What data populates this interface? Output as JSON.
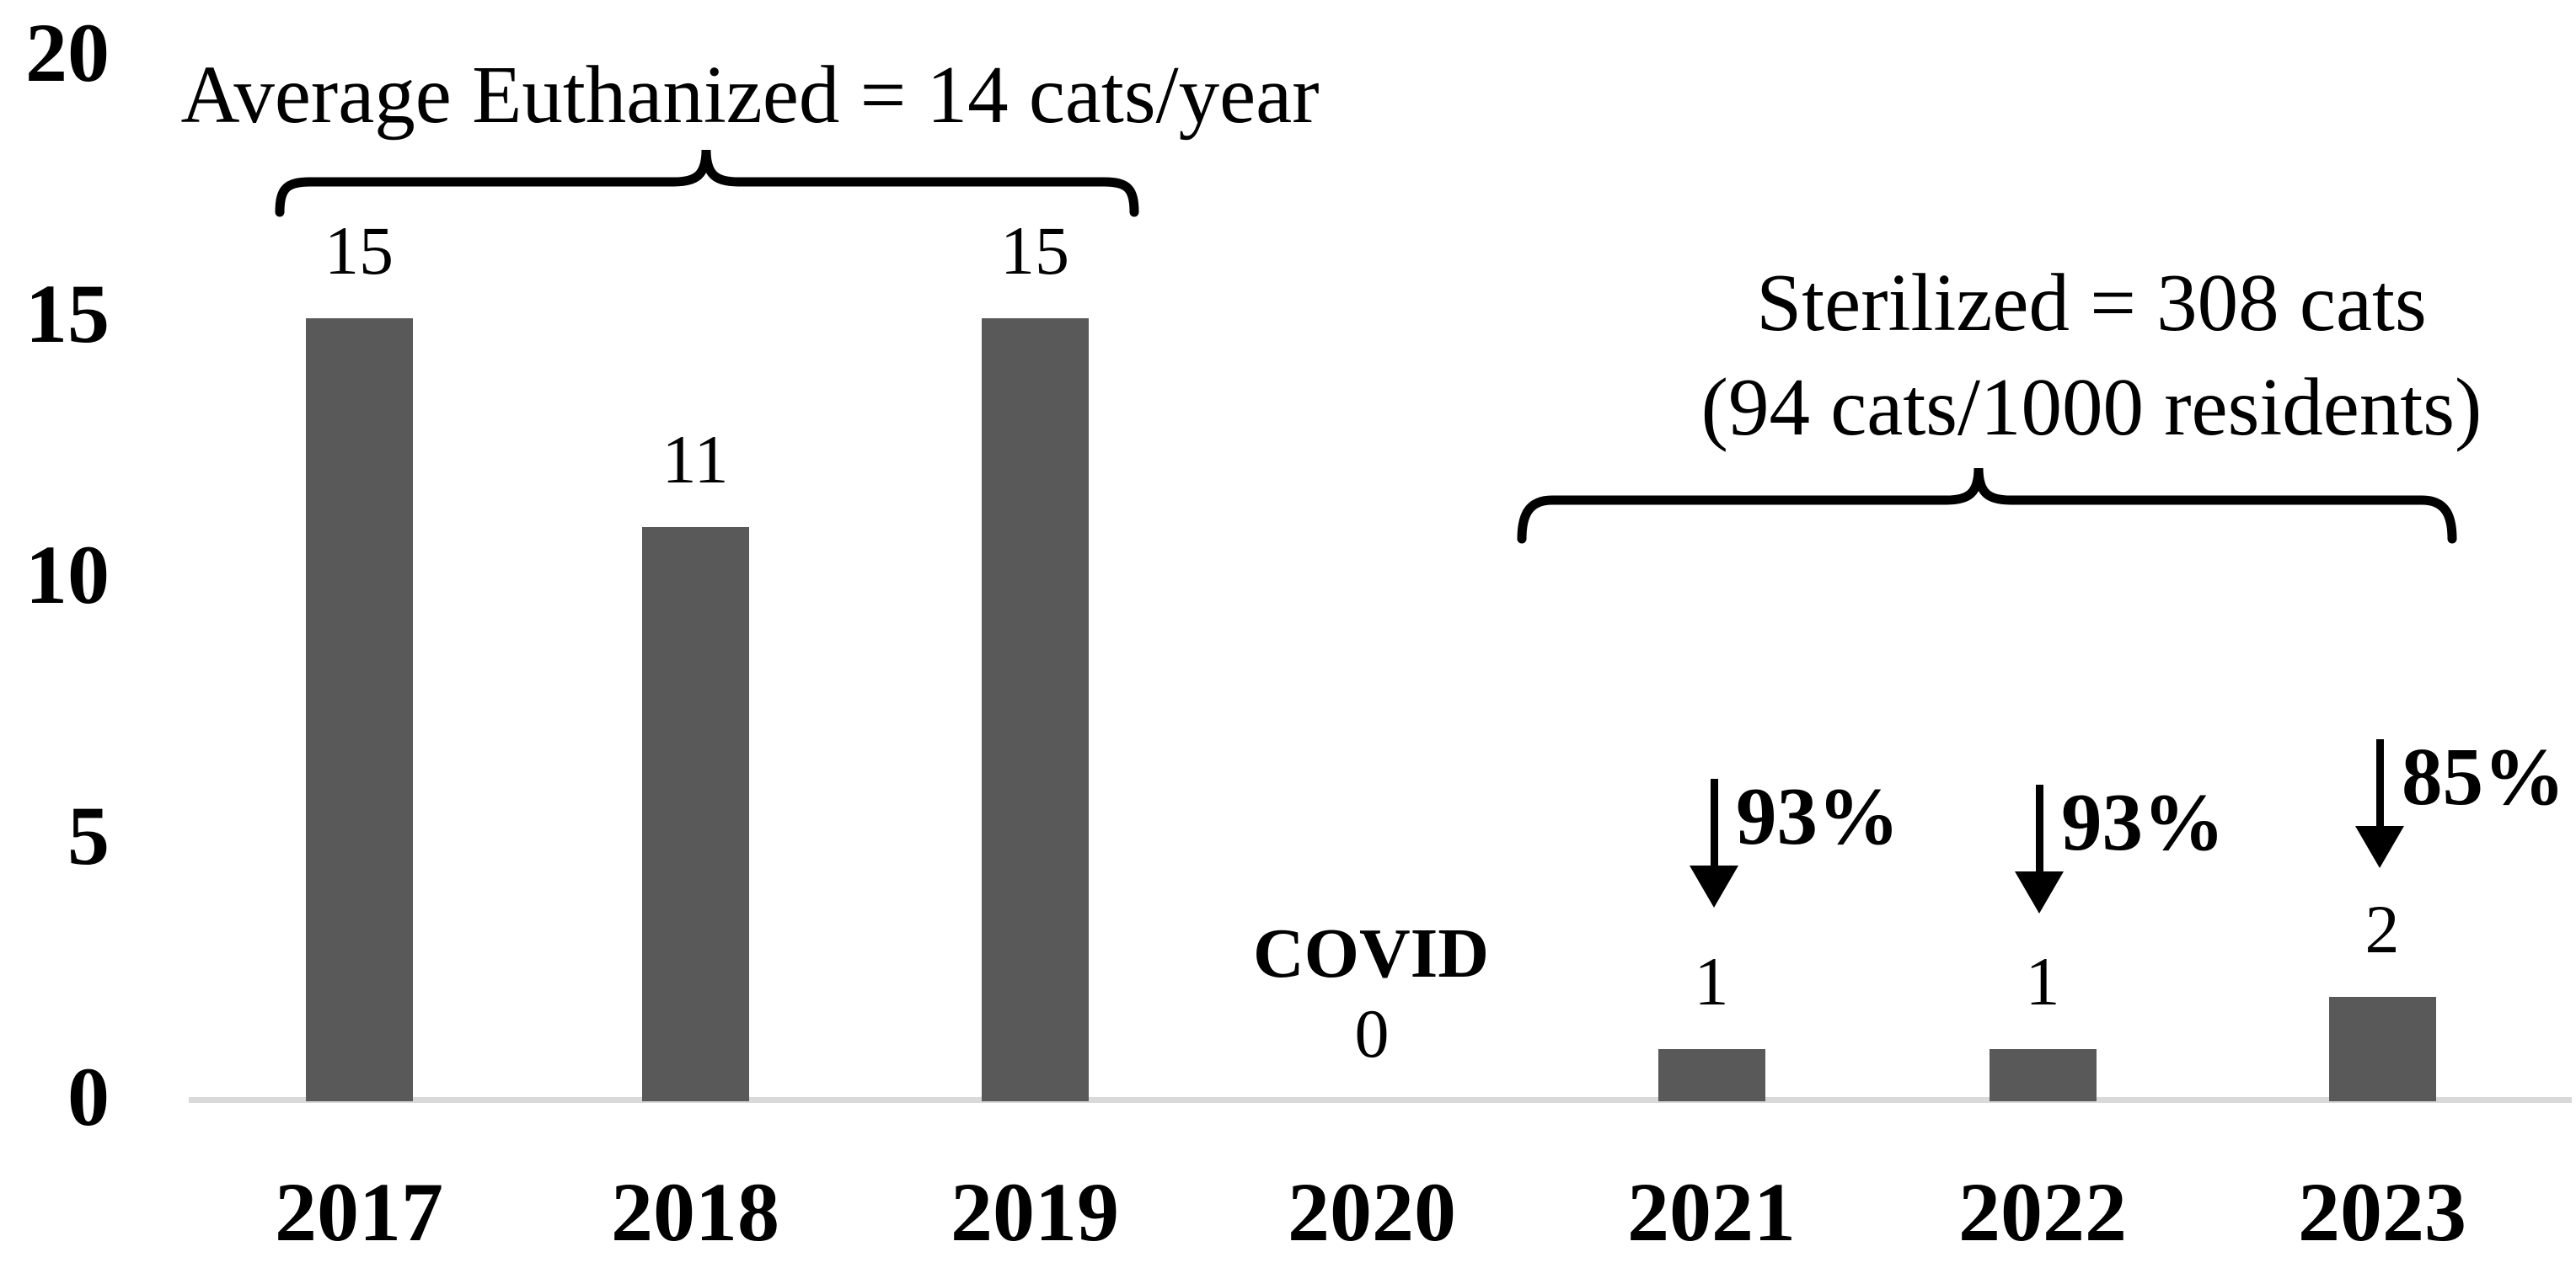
{
  "chart_data": {
    "type": "bar",
    "categories": [
      "2017",
      "2018",
      "2019",
      "2020",
      "2021",
      "2022",
      "2023"
    ],
    "values": [
      15,
      11,
      15,
      0,
      1,
      1,
      2
    ],
    "bar_labels": [
      "15",
      "11",
      "15",
      "0",
      "1",
      "1",
      "2"
    ],
    "title": "",
    "xlabel": "",
    "ylabel": "",
    "ylim": [
      0,
      20
    ],
    "yticks": [
      0,
      5,
      10,
      15,
      20
    ],
    "grid": false,
    "legend": "none",
    "bar_color": "#595959",
    "axis_line_color": "#d9d9d9",
    "text_color": "#000000",
    "annotations": {
      "euthanized_brace": {
        "label": "Average Euthanized = 14 cats/year",
        "from": "2017",
        "to": "2019"
      },
      "sterilized_brace": {
        "label_line1": "Sterilized = 308 cats",
        "label_line2": "(94 cats/1000 residents)",
        "from": "2021",
        "to": "2023"
      },
      "covid": {
        "label": "COVID",
        "year": "2020"
      },
      "pct_drops": [
        {
          "year": "2021",
          "label": "93%"
        },
        {
          "year": "2022",
          "label": "93%"
        },
        {
          "year": "2023",
          "label": "85%"
        }
      ]
    }
  }
}
